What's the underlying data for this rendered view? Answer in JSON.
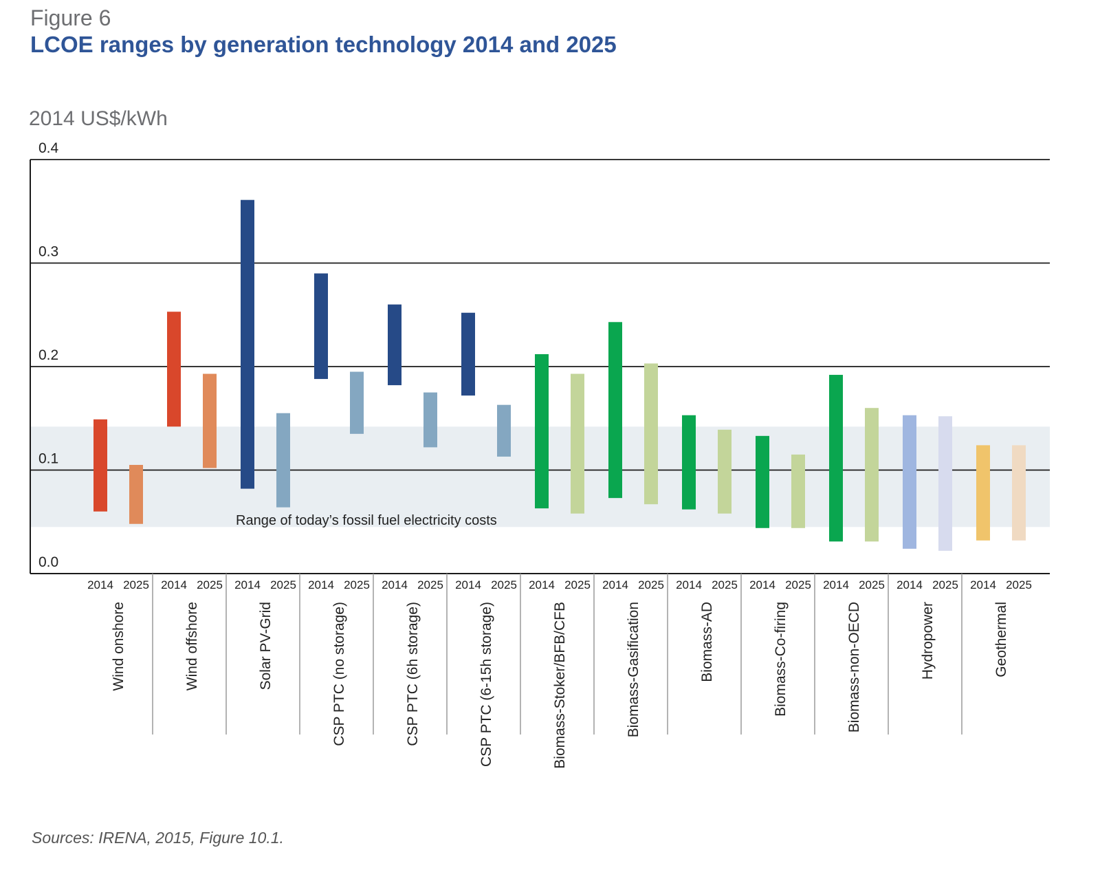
{
  "figure_label": "Figure 6",
  "title": "LCOE ranges by generation technology 2014 and 2025",
  "unit_label": "2014 US$/kWh",
  "source": "Sources: IRENA, 2015, Figure 10.1.",
  "chart_data": {
    "type": "bar",
    "subtype": "floating-range",
    "title": "LCOE ranges by generation technology 2014 and 2025",
    "ylabel": "2014 US$/kWh",
    "ylim": [
      0.0,
      0.4
    ],
    "yticks": [
      "0.0",
      "0.1",
      "0.2",
      "0.3",
      "0.4"
    ],
    "grid": true,
    "years": [
      "2014",
      "2025"
    ],
    "fossil_band": {
      "label": "Range of today’s fossil fuel electricity costs",
      "low": 0.045,
      "high": 0.142,
      "color": "#e9eef2"
    },
    "categories": [
      {
        "name": "Wind onshore",
        "ranges": [
          {
            "year": "2014",
            "low": 0.06,
            "high": 0.149,
            "color": "#d9472b"
          },
          {
            "year": "2025",
            "low": 0.048,
            "high": 0.105,
            "color": "#e08a5a"
          }
        ]
      },
      {
        "name": "Wind offshore",
        "ranges": [
          {
            "year": "2014",
            "low": 0.142,
            "high": 0.253,
            "color": "#d9472b"
          },
          {
            "year": "2025",
            "low": 0.102,
            "high": 0.193,
            "color": "#e08a5a"
          }
        ]
      },
      {
        "name": "Solar PV-Grid",
        "ranges": [
          {
            "year": "2014",
            "low": 0.082,
            "high": 0.361,
            "color": "#264a87"
          },
          {
            "year": "2025",
            "low": 0.064,
            "high": 0.155,
            "color": "#84a7c1"
          }
        ]
      },
      {
        "name": "CSP PTC (no storage)",
        "ranges": [
          {
            "year": "2014",
            "low": 0.188,
            "high": 0.29,
            "color": "#264a87"
          },
          {
            "year": "2025",
            "low": 0.135,
            "high": 0.195,
            "color": "#84a7c1"
          }
        ]
      },
      {
        "name": "CSP PTC (6h storage)",
        "ranges": [
          {
            "year": "2014",
            "low": 0.182,
            "high": 0.26,
            "color": "#264a87"
          },
          {
            "year": "2025",
            "low": 0.122,
            "high": 0.175,
            "color": "#84a7c1"
          }
        ]
      },
      {
        "name": "CSP PTC (6-15h storage)",
        "ranges": [
          {
            "year": "2014",
            "low": 0.172,
            "high": 0.252,
            "color": "#264a87"
          },
          {
            "year": "2025",
            "low": 0.113,
            "high": 0.163,
            "color": "#84a7c1"
          }
        ]
      },
      {
        "name": "Biomass-Stoker/BFB/CFB",
        "ranges": [
          {
            "year": "2014",
            "low": 0.063,
            "high": 0.212,
            "color": "#0aa64f"
          },
          {
            "year": "2025",
            "low": 0.058,
            "high": 0.193,
            "color": "#c3d59a"
          }
        ]
      },
      {
        "name": "Biomass-Gasification",
        "ranges": [
          {
            "year": "2014",
            "low": 0.073,
            "high": 0.243,
            "color": "#0aa64f"
          },
          {
            "year": "2025",
            "low": 0.067,
            "high": 0.203,
            "color": "#c3d59a"
          }
        ]
      },
      {
        "name": "Biomass-AD",
        "ranges": [
          {
            "year": "2014",
            "low": 0.062,
            "high": 0.153,
            "color": "#0aa64f"
          },
          {
            "year": "2025",
            "low": 0.058,
            "high": 0.139,
            "color": "#c3d59a"
          }
        ]
      },
      {
        "name": "Biomass-Co-firing",
        "ranges": [
          {
            "year": "2014",
            "low": 0.044,
            "high": 0.133,
            "color": "#0aa64f"
          },
          {
            "year": "2025",
            "low": 0.044,
            "high": 0.115,
            "color": "#c3d59a"
          }
        ]
      },
      {
        "name": "Biomass-non-OECD",
        "ranges": [
          {
            "year": "2014",
            "low": 0.031,
            "high": 0.192,
            "color": "#0aa64f"
          },
          {
            "year": "2025",
            "low": 0.031,
            "high": 0.16,
            "color": "#c3d59a"
          }
        ]
      },
      {
        "name": "Hydropower",
        "ranges": [
          {
            "year": "2014",
            "low": 0.024,
            "high": 0.153,
            "color": "#9fb6e0"
          },
          {
            "year": "2025",
            "low": 0.022,
            "high": 0.152,
            "color": "#d7dbee"
          }
        ]
      },
      {
        "name": "Geothermal",
        "ranges": [
          {
            "year": "2014",
            "low": 0.032,
            "high": 0.124,
            "color": "#f0c46b"
          },
          {
            "year": "2025",
            "low": 0.032,
            "high": 0.124,
            "color": "#f0dac2"
          }
        ]
      }
    ]
  }
}
